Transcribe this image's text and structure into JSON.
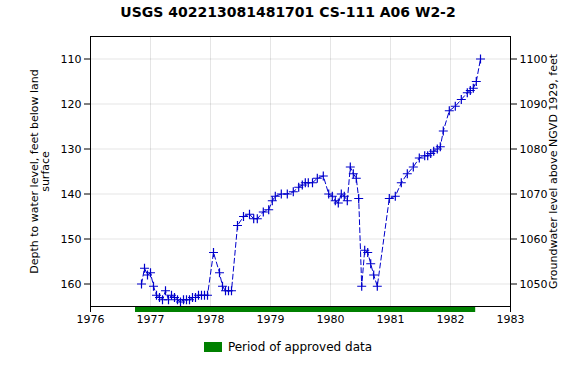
{
  "chart_data": {
    "type": "line",
    "title": "USGS 402213081481701 CS-111 A06 W2-2",
    "ylabel": "Depth to water level, feet below land\nsurface",
    "y2label": "Groundwater level above NGVD 1929, feet",
    "x": [
      1976.85,
      1976.9,
      1976.95,
      1977.0,
      1977.05,
      1977.1,
      1977.15,
      1977.2,
      1977.25,
      1977.3,
      1977.35,
      1977.4,
      1977.45,
      1977.5,
      1977.55,
      1977.6,
      1977.65,
      1977.7,
      1977.75,
      1977.8,
      1977.85,
      1977.9,
      1977.95,
      1978.05,
      1978.15,
      1978.2,
      1978.25,
      1978.3,
      1978.35,
      1978.45,
      1978.55,
      1978.65,
      1978.72,
      1978.78,
      1978.88,
      1978.97,
      1979.03,
      1979.08,
      1979.18,
      1979.28,
      1979.38,
      1979.47,
      1979.53,
      1979.58,
      1979.63,
      1979.7,
      1979.78,
      1979.88,
      1979.97,
      1980.03,
      1980.08,
      1980.13,
      1980.18,
      1980.23,
      1980.28,
      1980.33,
      1980.38,
      1980.43,
      1980.47,
      1980.52,
      1980.57,
      1980.62,
      1980.67,
      1980.72,
      1980.78,
      1980.98,
      1981.08,
      1981.18,
      1981.28,
      1981.38,
      1981.48,
      1981.57,
      1981.62,
      1981.67,
      1981.72,
      1981.78,
      1981.83,
      1981.88,
      1981.98,
      1982.08,
      1982.18,
      1982.28,
      1982.33,
      1982.38,
      1982.43,
      1982.5
    ],
    "values": [
      160.0,
      156.5,
      158.0,
      157.5,
      160.5,
      162.5,
      163.0,
      163.5,
      161.5,
      163.5,
      162.5,
      163.0,
      163.5,
      164.0,
      163.5,
      163.5,
      163.5,
      163.0,
      163.0,
      162.5,
      162.5,
      162.5,
      162.5,
      153.0,
      157.5,
      160.5,
      161.5,
      161.5,
      161.5,
      147.0,
      145.0,
      144.5,
      145.5,
      145.5,
      144.0,
      143.5,
      141.5,
      140.5,
      140.0,
      140.0,
      139.5,
      138.5,
      138.0,
      137.5,
      137.5,
      137.5,
      136.5,
      136.0,
      140.0,
      140.5,
      141.5,
      142.0,
      140.0,
      140.5,
      141.5,
      134.0,
      135.5,
      136.5,
      141.0,
      160.5,
      152.5,
      153.0,
      155.5,
      158.0,
      160.5,
      141.0,
      140.5,
      137.5,
      135.5,
      134.0,
      132.0,
      131.5,
      131.5,
      131.0,
      130.5,
      130.0,
      129.5,
      126.0,
      121.5,
      120.5,
      119.0,
      117.5,
      117.0,
      116.5,
      115.0,
      110.0
    ],
    "color": "#0000cc",
    "marker": "plus",
    "line_style": "dashed",
    "xlim": [
      1976,
      1983
    ],
    "xticks": [
      1976,
      1977,
      1978,
      1979,
      1980,
      1981,
      1982,
      1983
    ],
    "ylim": [
      165,
      105
    ],
    "yticks": [
      110,
      120,
      130,
      140,
      150,
      160
    ],
    "y2lim": [
      1045,
      1105
    ],
    "y2ticks": [
      1050,
      1060,
      1070,
      1080,
      1090,
      1100
    ],
    "grid": true,
    "legend": "bottom",
    "approved_period": {
      "label": "Period of approved data",
      "start": 1976.75,
      "end": 1982.42,
      "color": "#008000"
    }
  }
}
